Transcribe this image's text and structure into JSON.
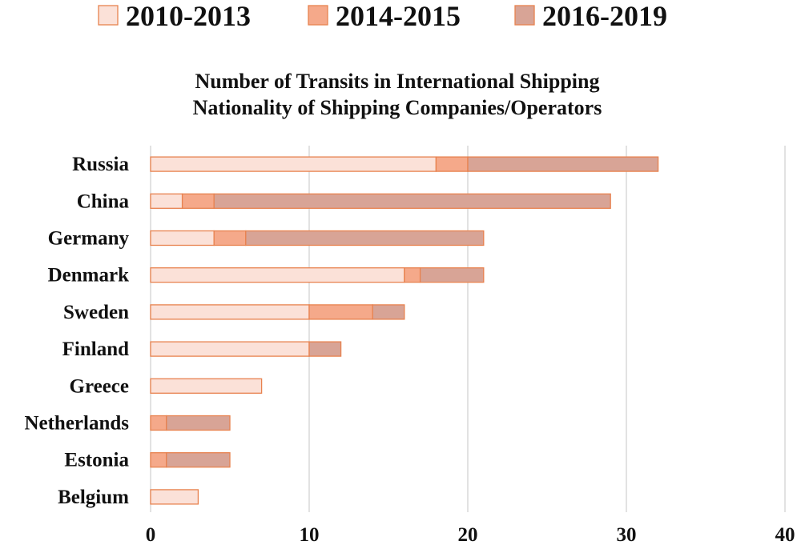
{
  "chart_data": {
    "type": "bar",
    "orientation": "horizontal",
    "stacked": true,
    "title": "Number of Transits in International Shipping",
    "subtitle": "Nationality of Shipping Companies/Operators",
    "xlabel": "",
    "ylabel": "",
    "xlim": [
      0,
      40
    ],
    "x_ticks": [
      "0",
      "10",
      "20",
      "30",
      "40"
    ],
    "grid": "vertical",
    "legend_position": "top",
    "categories": [
      "Russia",
      "China",
      "Germany",
      "Denmark",
      "Sweden",
      "Finland",
      "Greece",
      "Netherlands",
      "Estonia",
      "Belgium"
    ],
    "series": [
      {
        "name": "2010-2013",
        "color": "#fbe1d8",
        "values": [
          18,
          2,
          4,
          16,
          10,
          10,
          7,
          0,
          0,
          3
        ]
      },
      {
        "name": "2014-2015",
        "color": "#f5a98a",
        "values": [
          2,
          2,
          2,
          1,
          4,
          0,
          0,
          1,
          1,
          0
        ]
      },
      {
        "name": "2016-2019",
        "color": "#d8a496",
        "values": [
          12,
          25,
          15,
          4,
          2,
          2,
          0,
          4,
          4,
          0
        ]
      }
    ],
    "bar_edge_color": "#e8824f"
  }
}
